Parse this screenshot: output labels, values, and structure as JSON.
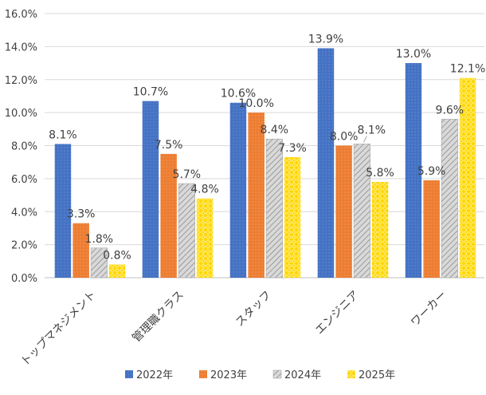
{
  "chart_data": {
    "type": "bar",
    "categories": [
      "トップマネジメント",
      "管理職クラス",
      "スタッフ",
      "エンジニア",
      "ワーカー"
    ],
    "series": [
      {
        "name": "2022年",
        "values": [
          8.1,
          10.7,
          10.6,
          13.9,
          13.0
        ],
        "labels": [
          "8.1%",
          "10.7%",
          "10.6%",
          "13.9%",
          "13.0%"
        ],
        "color": "#4472C4"
      },
      {
        "name": "2023年",
        "values": [
          3.3,
          7.5,
          10.0,
          8.0,
          5.9
        ],
        "labels": [
          "3.3%",
          "7.5%",
          "10.0%",
          "8.0%",
          "5.9%"
        ],
        "color": "#ED7D31"
      },
      {
        "name": "2024年",
        "values": [
          1.8,
          5.7,
          8.4,
          8.1,
          9.6
        ],
        "labels": [
          "1.8%",
          "5.7%",
          "8.4%",
          "8.1%",
          "9.6%"
        ],
        "color": "#BFBFBF"
      },
      {
        "name": "2025年",
        "values": [
          0.8,
          4.8,
          7.3,
          5.8,
          12.1
        ],
        "labels": [
          "0.8%",
          "4.8%",
          "7.3%",
          "5.8%",
          "12.1%"
        ],
        "color": "#FFD700"
      }
    ],
    "yticks": [
      "0.0%",
      "2.0%",
      "4.0%",
      "6.0%",
      "8.0%",
      "10.0%",
      "12.0%",
      "14.0%",
      "16.0%"
    ],
    "ylim": [
      0,
      16
    ],
    "grid": true,
    "legend_position": "bottom"
  }
}
